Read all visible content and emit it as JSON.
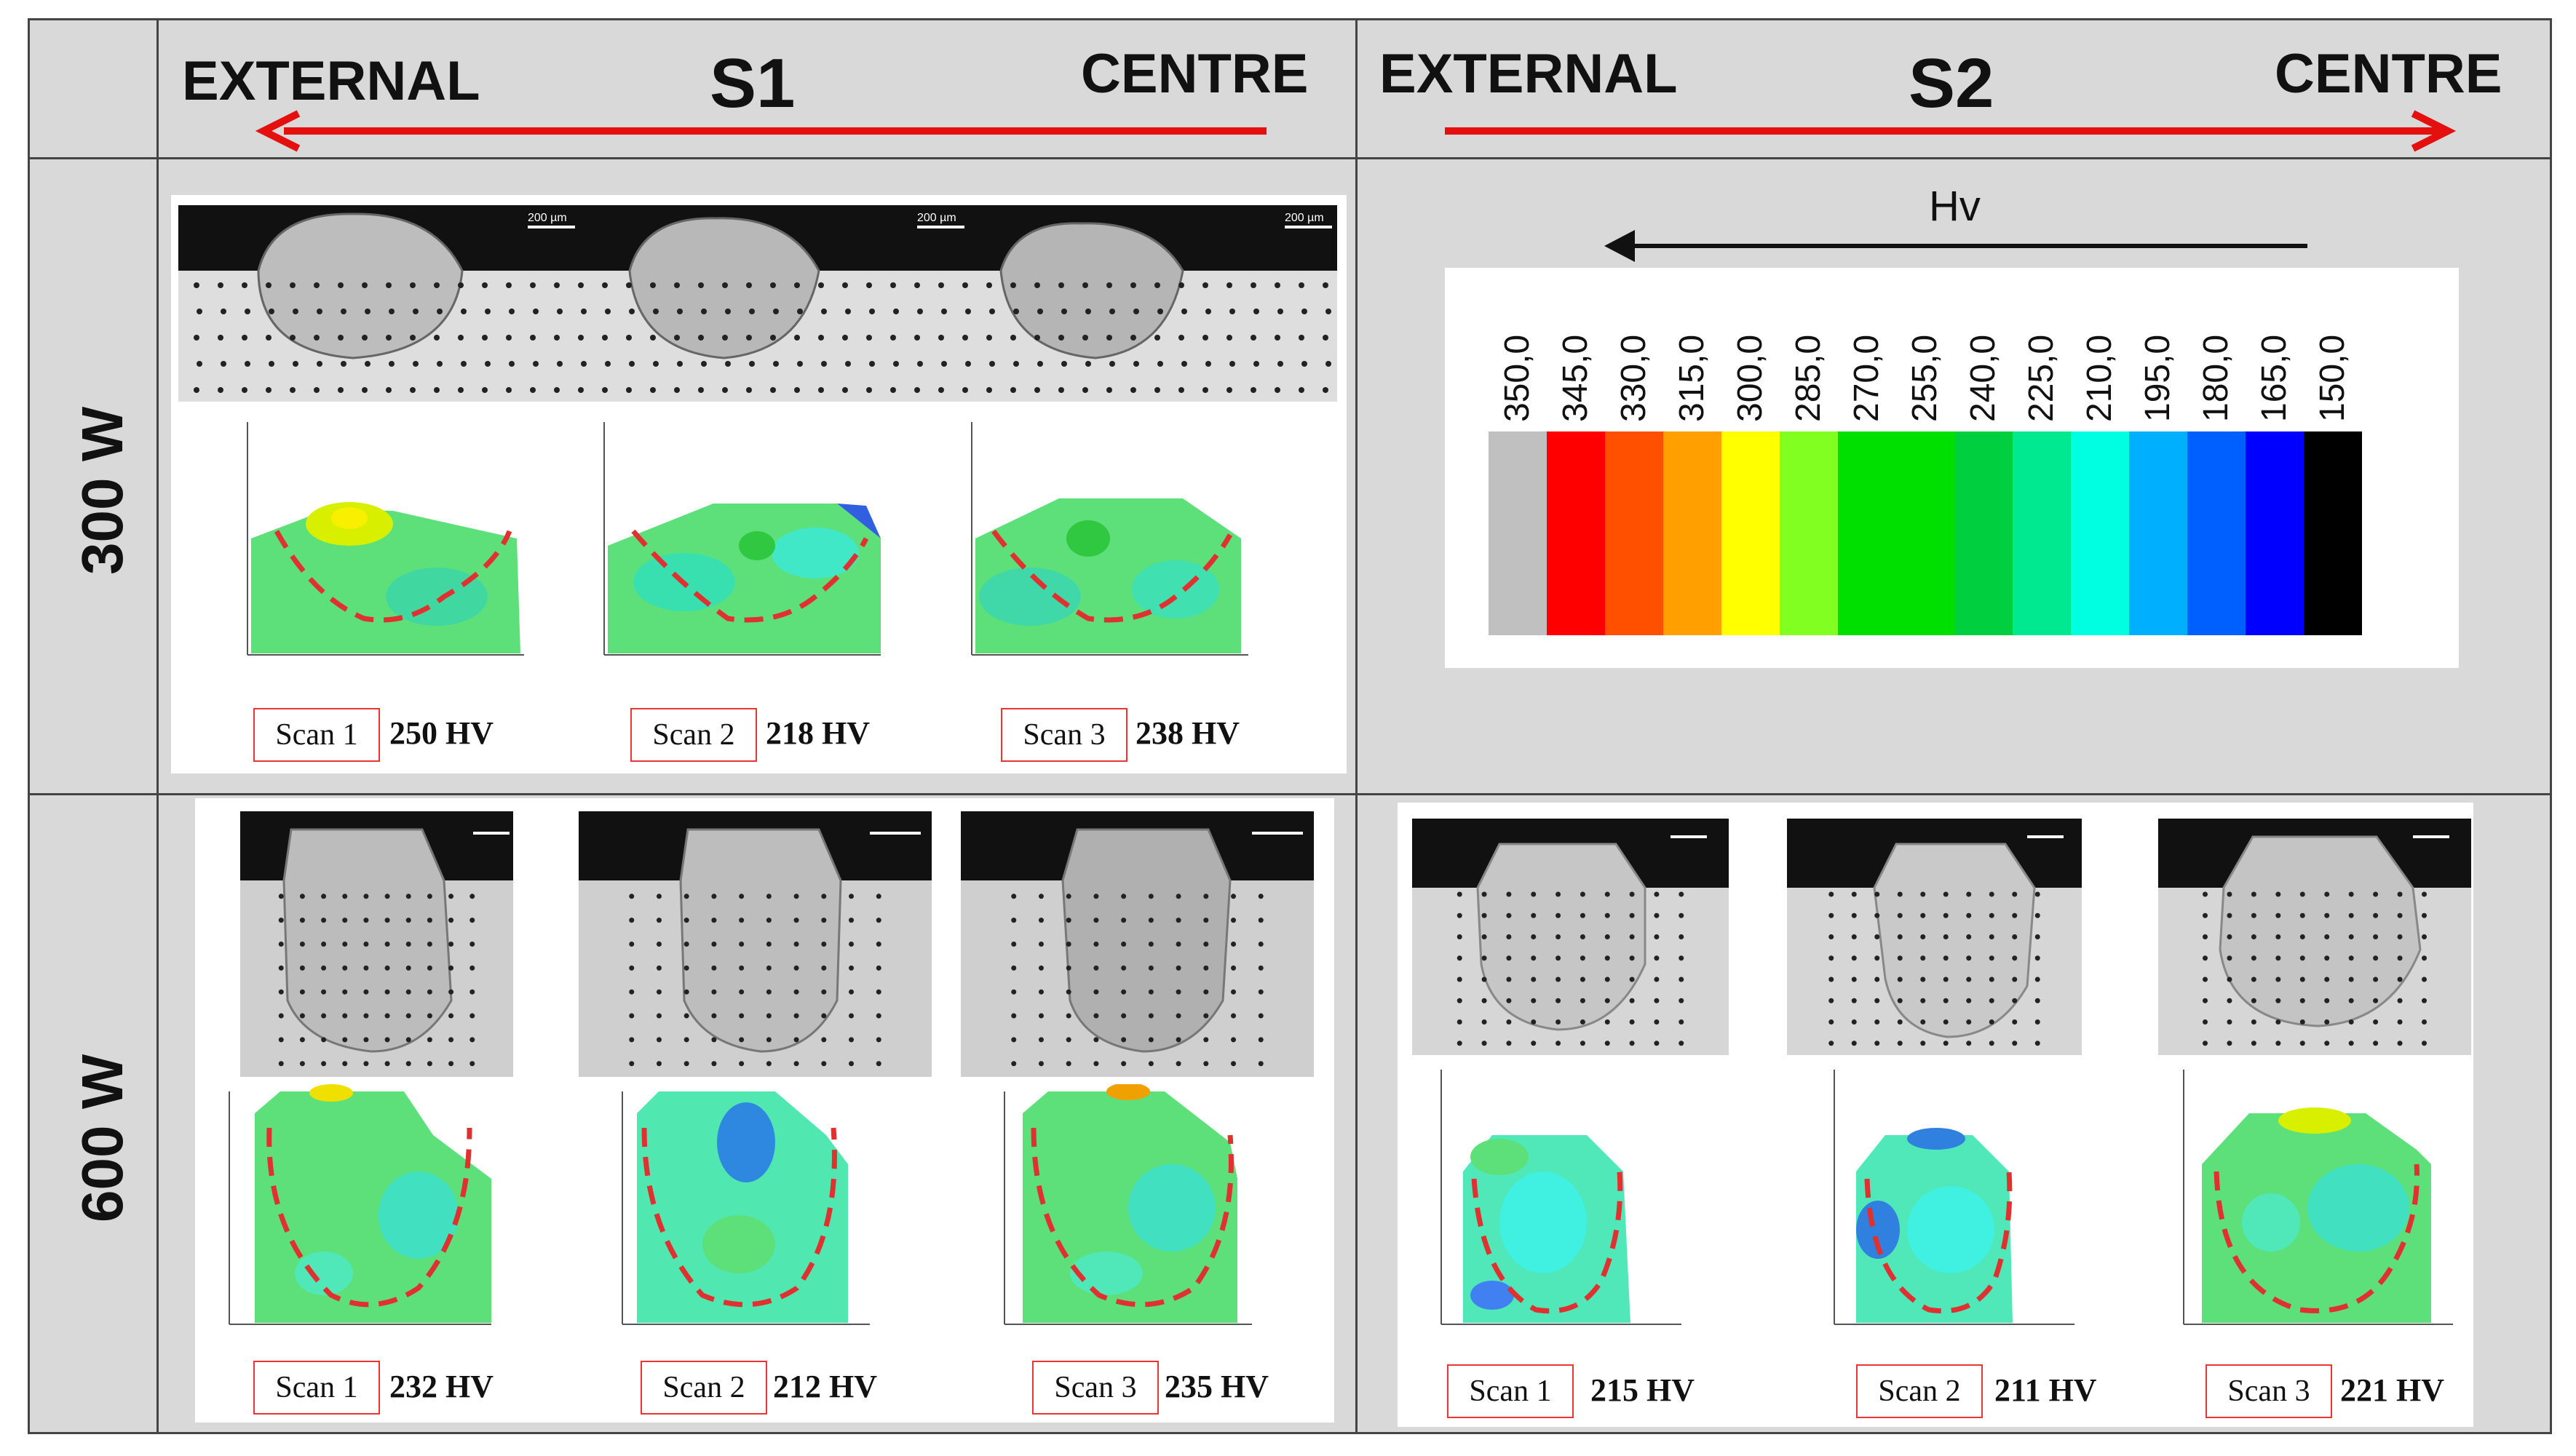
{
  "header": {
    "s1": {
      "left": "EXTERNAL",
      "title": "S1",
      "right": "CENTRE"
    },
    "s2": {
      "left": "EXTERNAL",
      "title": "S2",
      "right": "CENTRE"
    }
  },
  "rows": {
    "r1": "300 W",
    "r2": "600 W"
  },
  "legend": {
    "title": "Hv",
    "values": [
      "350,0",
      "345,0",
      "330,0",
      "315,0",
      "300,0",
      "285,0",
      "270,0",
      "255,0",
      "240,0",
      "225,0",
      "210,0",
      "195,0",
      "180,0",
      "165,0",
      "150,0"
    ],
    "colors": [
      "#c0c0c0",
      "#ff0000",
      "#ff5000",
      "#ffa000",
      "#ffff00",
      "#80ff20",
      "#00e000",
      "#00e000",
      "#00d040",
      "#00e890",
      "#00ffe0",
      "#00b0ff",
      "#0060ff",
      "#0000ff",
      "#000000"
    ]
  },
  "micro_labels": {
    "p1": "200 µm",
    "p2": "200 µm",
    "p3": "200 µm"
  },
  "scans": {
    "s1_300": [
      {
        "label": "Scan 1",
        "value": "250 HV"
      },
      {
        "label": "Scan 2",
        "value": "218 HV"
      },
      {
        "label": "Scan 3",
        "value": "238 HV"
      }
    ],
    "s1_600": [
      {
        "label": "Scan 1",
        "value": "232 HV"
      },
      {
        "label": "Scan 2",
        "value": "212 HV"
      },
      {
        "label": "Scan 3",
        "value": "235 HV"
      }
    ],
    "s2_600": [
      {
        "label": "Scan 1",
        "value": "215 HV"
      },
      {
        "label": "Scan 2",
        "value": "211 HV"
      },
      {
        "label": "Scan 3",
        "value": "221 HV"
      }
    ]
  }
}
